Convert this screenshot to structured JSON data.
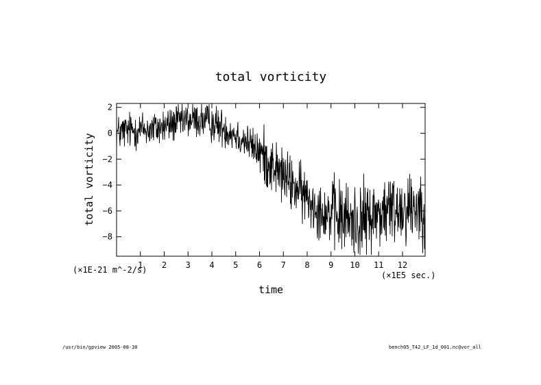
{
  "chart_data": {
    "type": "line",
    "title": "total vorticity",
    "xlabel": "time",
    "ylabel": "total vorticity",
    "x_unit": "(×1E5 sec.)",
    "y_unit": "(×1E-21 m^-2/s)",
    "xlim": [
      0.0,
      12.95
    ],
    "ylim": [
      -9.5,
      2.3
    ],
    "x_ticks": [
      "1",
      "2",
      "3",
      "4",
      "5",
      "6",
      "7",
      "8",
      "9",
      "10",
      "11",
      "12"
    ],
    "y_ticks": [
      "2",
      "0",
      "−2",
      "−4",
      "−6",
      "−8"
    ],
    "y_tick_values": [
      2,
      0,
      -2,
      -4,
      -6,
      -8
    ],
    "x_tick_values": [
      1,
      2,
      3,
      4,
      5,
      6,
      7,
      8,
      9,
      10,
      11,
      12
    ],
    "grid": false,
    "legend": "none",
    "line_color": "#000000",
    "series": [
      {
        "x": [
          0.0,
          0.5,
          1.0,
          1.5,
          2.0,
          2.5,
          3.0,
          3.5,
          4.0,
          4.5,
          5.0,
          5.5,
          6.0,
          6.5,
          7.0,
          7.5,
          8.0,
          8.5,
          9.0,
          9.5,
          10.0,
          10.5,
          11.0,
          11.5,
          12.0,
          12.5,
          12.95
        ],
        "values": [
          0.0,
          0.2,
          0.3,
          0.3,
          0.5,
          0.8,
          1.0,
          1.0,
          0.8,
          0.4,
          -0.1,
          -0.7,
          -1.5,
          -2.4,
          -3.3,
          -4.2,
          -5.0,
          -5.8,
          -6.3,
          -6.6,
          -6.8,
          -6.6,
          -6.2,
          -5.9,
          -5.7,
          -5.6,
          -5.5
        ]
      }
    ]
  },
  "footer": {
    "left": "/usr/bin/gpview  2005-08-30",
    "right": "bench05_T42_LF_1d_001.nc@vor_all"
  }
}
